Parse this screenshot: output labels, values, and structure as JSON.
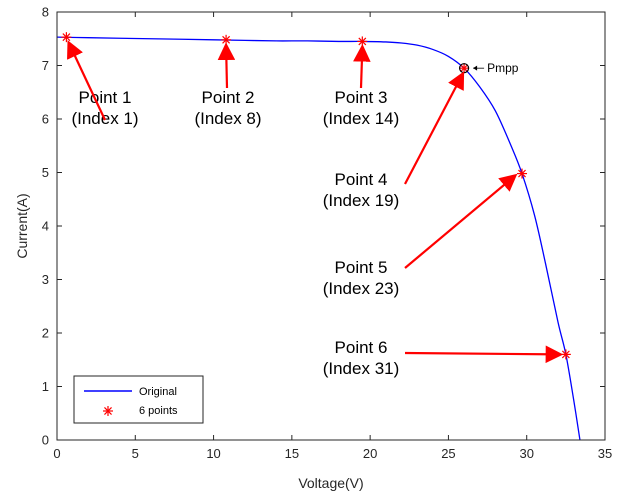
{
  "chart_data": {
    "type": "line",
    "xlabel": "Voltage(V)",
    "ylabel": "Current(A)",
    "xlim": [
      0,
      35
    ],
    "ylim": [
      0,
      8
    ],
    "xticks": [
      0,
      5,
      10,
      15,
      20,
      25,
      30,
      35
    ],
    "yticks": [
      0,
      1,
      2,
      3,
      4,
      5,
      6,
      7,
      8
    ],
    "grid": false,
    "legend_position": "bottom-left",
    "series": [
      {
        "name": "Original",
        "color": "#0000ff",
        "x": [
          0,
          2,
          4,
          6,
          8,
          10,
          12,
          14,
          16,
          18,
          19.5,
          21,
          22,
          23,
          24,
          25,
          26,
          27,
          28,
          29,
          29.7,
          30.5,
          31.2,
          32,
          32.5,
          33,
          33.4
        ],
        "y": [
          7.53,
          7.52,
          7.51,
          7.5,
          7.49,
          7.48,
          7.47,
          7.46,
          7.46,
          7.45,
          7.45,
          7.44,
          7.42,
          7.38,
          7.3,
          7.17,
          6.95,
          6.6,
          6.15,
          5.5,
          4.98,
          4.2,
          3.3,
          2.2,
          1.6,
          0.75,
          0
        ]
      },
      {
        "name": "6 points",
        "color": "#ff0000",
        "marker": "asterisk",
        "x": [
          0.6,
          10.8,
          19.5,
          26.0,
          29.7,
          32.5
        ],
        "y": [
          7.53,
          7.48,
          7.45,
          6.95,
          4.98,
          1.6
        ]
      }
    ],
    "mpp": {
      "x": 26.0,
      "y": 6.95,
      "label": "Pmpp"
    },
    "annotations": [
      {
        "lines": [
          "Point 1",
          "(Index 1)"
        ],
        "target_index": 0
      },
      {
        "lines": [
          "Point 2",
          "(Index 8)"
        ],
        "target_index": 1
      },
      {
        "lines": [
          "Point 3",
          "(Index 14)"
        ],
        "target_index": 2
      },
      {
        "lines": [
          "Point 4",
          "(Index 19)"
        ],
        "target_index": 3
      },
      {
        "lines": [
          "Point 5",
          "(Index 23)"
        ],
        "target_index": 4
      },
      {
        "lines": [
          "Point 6",
          "(Index 31)"
        ],
        "target_index": 5
      }
    ]
  }
}
